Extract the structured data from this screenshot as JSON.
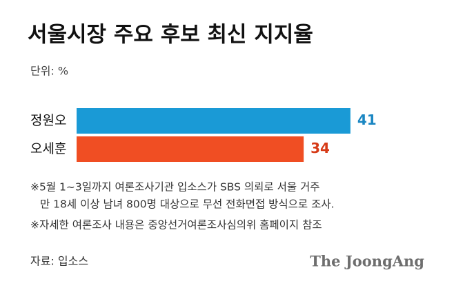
{
  "chart_data": {
    "type": "bar",
    "orientation": "horizontal",
    "title": "서울시장 주요 후보 최신 지지율",
    "unit": "단위: %",
    "categories": [
      "정원오",
      "오세훈"
    ],
    "values": [
      41,
      34
    ],
    "colors": [
      "#1a9ad6",
      "#f04e23"
    ],
    "label_colors": [
      "#1a86c2",
      "#d63a17"
    ],
    "notes": [
      "※5월 1~3일까지 여론조사기관 입소스가 SBS 의뢰로 서울 거주",
      "만 18세 이상 남녀 800명 대상으로 무선 전화면접 방식으로 조사.",
      "※자세한 여론조사 내용은 중앙선거여론조사심의위 홈페이지 참조"
    ],
    "source": "자료: 입소스",
    "logo": "The JoongAng"
  }
}
